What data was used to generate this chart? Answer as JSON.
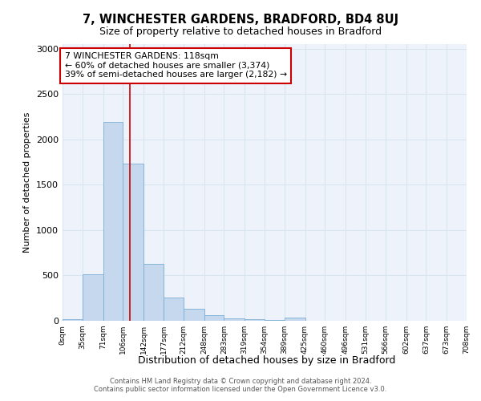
{
  "title": "7, WINCHESTER GARDENS, BRADFORD, BD4 8UJ",
  "subtitle": "Size of property relative to detached houses in Bradford",
  "xlabel": "Distribution of detached houses by size in Bradford",
  "ylabel": "Number of detached properties",
  "bar_bins": [
    0,
    35,
    71,
    106,
    142,
    177,
    212,
    248,
    283,
    319,
    354,
    389,
    425,
    460,
    496,
    531,
    566,
    602,
    637,
    673,
    708
  ],
  "bar_heights": [
    20,
    510,
    2190,
    1730,
    630,
    260,
    130,
    65,
    30,
    15,
    6,
    35,
    0,
    0,
    0,
    0,
    0,
    0,
    0,
    0
  ],
  "bar_color": "#c5d8ee",
  "bar_edge_color": "#7aadd4",
  "grid_color": "#d8e4f0",
  "background_color": "#eef3fb",
  "property_size": 118,
  "vline_color": "#cc0000",
  "annotation_text": "7 WINCHESTER GARDENS: 118sqm\n← 60% of detached houses are smaller (3,374)\n39% of semi-detached houses are larger (2,182) →",
  "annotation_box_color": "#cc0000",
  "ylim": [
    0,
    3050
  ],
  "yticks": [
    0,
    500,
    1000,
    1500,
    2000,
    2500,
    3000
  ],
  "footer_line1": "Contains HM Land Registry data © Crown copyright and database right 2024.",
  "footer_line2": "Contains public sector information licensed under the Open Government Licence v3.0.",
  "tick_labels": [
    "0sqm",
    "35sqm",
    "71sqm",
    "106sqm",
    "142sqm",
    "177sqm",
    "212sqm",
    "248sqm",
    "283sqm",
    "319sqm",
    "354sqm",
    "389sqm",
    "425sqm",
    "460sqm",
    "496sqm",
    "531sqm",
    "566sqm",
    "602sqm",
    "637sqm",
    "673sqm",
    "708sqm"
  ]
}
